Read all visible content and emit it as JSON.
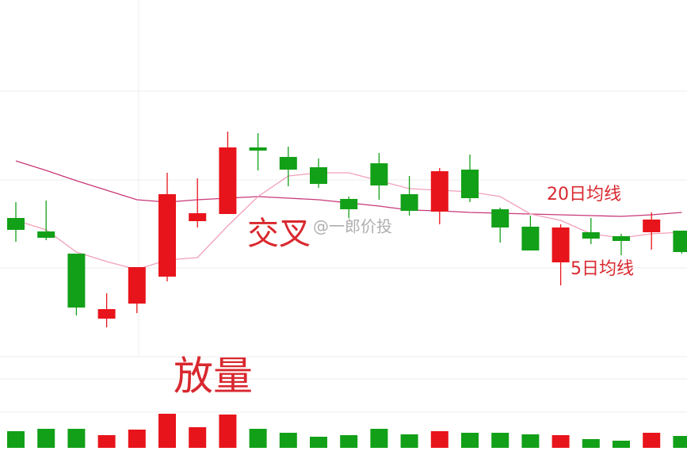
{
  "chart_data": {
    "type": "candlestick",
    "up_color": "#e8141b",
    "down_color": "#12a018",
    "open": [
      225,
      208,
      180,
      98,
      117,
      151,
      221,
      230,
      314,
      302,
      289,
      249,
      294,
      255,
      233,
      286,
      236,
      214,
      169,
      207,
      202,
      207,
      209
    ],
    "high": [
      245,
      247,
      180,
      130,
      163,
      282,
      275,
      334,
      332,
      315,
      300,
      252,
      307,
      278,
      288,
      305,
      238,
      228,
      217,
      225,
      205,
      232,
      209
    ],
    "low": [
      195,
      197,
      102,
      87,
      105,
      145,
      213,
      230,
      285,
      265,
      263,
      225,
      248,
      228,
      217,
      245,
      194,
      184,
      140,
      192,
      178,
      185,
      180
    ],
    "close": [
      210,
      200,
      112,
      110,
      163,
      255,
      231,
      314,
      310,
      286,
      268,
      236,
      266,
      234,
      284,
      250,
      213,
      184,
      213,
      199,
      196,
      223,
      182
    ],
    "ylim": [
      50,
      500
    ],
    "volume": [
      21,
      24,
      24,
      16,
      23,
      43,
      26,
      42,
      24,
      19,
      14,
      16,
      24,
      17,
      21,
      19,
      19,
      17,
      16,
      11,
      9,
      19,
      15
    ],
    "volume_lim": [
      0,
      50
    ],
    "series": [
      {
        "name": "20日均线",
        "color": "#c8387a",
        "values": [
          297,
          285,
          272,
          260,
          248,
          245,
          248,
          250,
          252,
          250,
          248,
          244,
          240,
          235,
          234,
          232,
          231,
          230,
          229,
          228,
          227,
          229,
          232
        ]
      },
      {
        "name": "5日均线",
        "color": "#f0a0b8",
        "values": [
          222,
          210,
          182,
          170,
          160,
          172,
          175,
          215,
          252,
          278,
          282,
          282,
          272,
          262,
          260,
          258,
          252,
          230,
          222,
          205,
          200,
          205,
          207
        ]
      }
    ],
    "annotations": [
      "交叉",
      "放量"
    ],
    "watermark": "@一郎价投"
  }
}
